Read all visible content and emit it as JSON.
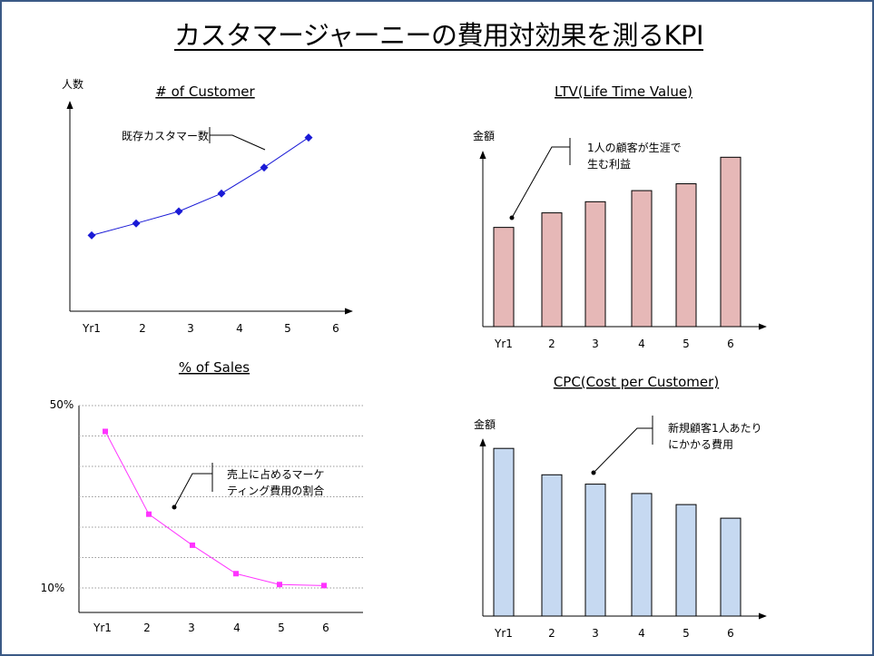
{
  "title": "カスタマージャーニーの費用対効果を測るKPI",
  "chart_data": [
    {
      "type": "line",
      "title": "# of Customer",
      "ylabel": "人数",
      "categories": [
        "Yr1",
        "2",
        "3",
        "4",
        "5",
        "6"
      ],
      "series": [
        {
          "values": [
            1.8,
            2.4,
            3.0,
            3.9,
            5.2,
            6.7
          ]
        }
      ],
      "ylim": [
        -2,
        8
      ],
      "marker": "diamond",
      "color": "#1a1ad6",
      "grid": false,
      "annotation": "既存カスタマー数"
    },
    {
      "type": "bar",
      "title": "LTV(Life Time Value)",
      "ylabel": "金額",
      "categories": [
        "Yr1",
        "2",
        "3",
        "4",
        "5",
        "6"
      ],
      "values": [
        116,
        133,
        146,
        159,
        167,
        198
      ],
      "ylim": [
        0,
        210
      ],
      "color": "#e6b8b7",
      "grid": false,
      "annotation": [
        "1人の顧客が生涯で",
        "生む利益"
      ]
    },
    {
      "type": "line",
      "title": "% of Sales",
      "categories": [
        "Yr1",
        "2",
        "3",
        "4",
        "5",
        "6"
      ],
      "series": [
        {
          "values": [
            45,
            29,
            23,
            17.5,
            15.4,
            15.2
          ]
        }
      ],
      "ylim": [
        10,
        50
      ],
      "ytick_labels": [
        "50%",
        "10%"
      ],
      "marker": "square",
      "color": "#ff33ff",
      "grid": true,
      "annotation": [
        "売上に占めるマーケ",
        "ティング費用の割合"
      ]
    },
    {
      "type": "bar",
      "title": "CPC(Cost per Customer)",
      "ylabel": "金額",
      "categories": [
        "Yr1",
        "2",
        "3",
        "4",
        "5",
        "6"
      ],
      "values": [
        197,
        166,
        155,
        144,
        131,
        115
      ],
      "ylim": [
        0,
        210
      ],
      "color": "#c6d9f1",
      "grid": false,
      "annotation": [
        "新規顧客1人あたり",
        "にかかる費用"
      ]
    }
  ]
}
